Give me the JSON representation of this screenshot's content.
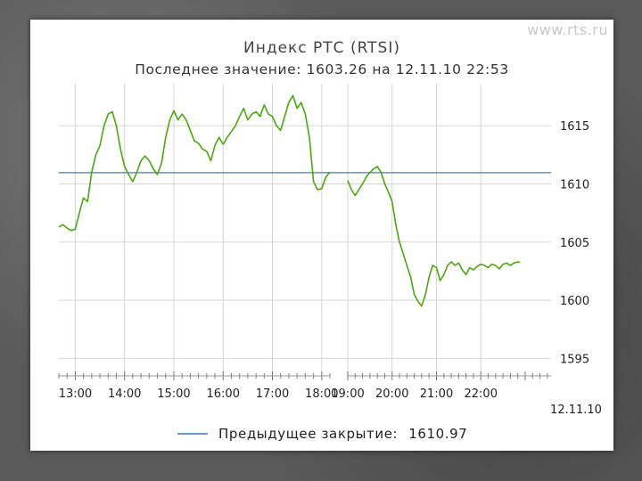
{
  "watermark": "www.rts.ru",
  "chart_data": {
    "type": "line",
    "title": "Индекс РТС (RTSI)",
    "subtitle": "Последнее значение: 1603.26 на 12.11.10 22:53",
    "x_ticks": [
      "13:00",
      "14:00",
      "15:00",
      "16:00",
      "17:00",
      "18:00",
      "19:00",
      "20:00",
      "21:00",
      "22:00"
    ],
    "date_label": "12.11.10",
    "y_ticks": [
      1595,
      1600,
      1605,
      1610,
      1615
    ],
    "ylim": [
      1593.5,
      1618
    ],
    "xlim": [
      "12:40",
      "23:35"
    ],
    "grid": true,
    "reference_line": {
      "label": "Предыдущее закрытие:",
      "value": 1610.97,
      "color": "#6b9bd2"
    },
    "series": [
      {
        "color": "#4aa80f",
        "segments": [
          [
            [
              "12:40",
              1606.3
            ],
            [
              "12:45",
              1606.5
            ],
            [
              "12:50",
              1606.2
            ],
            [
              "12:55",
              1606.0
            ],
            [
              "13:00",
              1606.1
            ],
            [
              "13:05",
              1607.5
            ],
            [
              "13:10",
              1608.8
            ],
            [
              "13:15",
              1608.5
            ],
            [
              "13:20",
              1611.0
            ],
            [
              "13:25",
              1612.5
            ],
            [
              "13:30",
              1613.3
            ],
            [
              "13:35",
              1615.0
            ],
            [
              "13:40",
              1616.0
            ],
            [
              "13:45",
              1616.2
            ],
            [
              "13:50",
              1615.0
            ],
            [
              "13:55",
              1613.0
            ],
            [
              "14:00",
              1611.5
            ],
            [
              "14:05",
              1610.8
            ],
            [
              "14:10",
              1610.2
            ],
            [
              "14:15",
              1611.0
            ],
            [
              "14:20",
              1612.0
            ],
            [
              "14:25",
              1612.4
            ],
            [
              "14:30",
              1612.0
            ],
            [
              "14:35",
              1611.3
            ],
            [
              "14:40",
              1610.8
            ],
            [
              "14:45",
              1611.8
            ],
            [
              "14:50",
              1614.0
            ],
            [
              "14:55",
              1615.5
            ],
            [
              "15:00",
              1616.3
            ],
            [
              "15:05",
              1615.5
            ],
            [
              "15:10",
              1616.0
            ],
            [
              "15:15",
              1615.5
            ],
            [
              "15:20",
              1614.6
            ],
            [
              "15:25",
              1613.7
            ],
            [
              "15:30",
              1613.5
            ],
            [
              "15:35",
              1613.0
            ],
            [
              "15:40",
              1612.8
            ],
            [
              "15:45",
              1612.0
            ],
            [
              "15:50",
              1613.3
            ],
            [
              "15:55",
              1614.0
            ],
            [
              "16:00",
              1613.4
            ],
            [
              "16:05",
              1614.0
            ],
            [
              "16:10",
              1614.5
            ],
            [
              "16:15",
              1615.0
            ],
            [
              "16:20",
              1615.8
            ],
            [
              "16:25",
              1616.5
            ],
            [
              "16:30",
              1615.5
            ],
            [
              "16:35",
              1616.0
            ],
            [
              "16:40",
              1616.2
            ],
            [
              "16:45",
              1615.8
            ],
            [
              "16:50",
              1616.8
            ],
            [
              "16:55",
              1616.0
            ],
            [
              "17:00",
              1615.8
            ],
            [
              "17:05",
              1615.0
            ],
            [
              "17:10",
              1614.6
            ],
            [
              "17:15",
              1615.8
            ],
            [
              "17:20",
              1617.0
            ],
            [
              "17:25",
              1617.6
            ],
            [
              "17:30",
              1616.5
            ],
            [
              "17:35",
              1617.0
            ],
            [
              "17:40",
              1616.0
            ],
            [
              "17:45",
              1614.0
            ],
            [
              "17:50",
              1610.2
            ],
            [
              "17:55",
              1609.5
            ],
            [
              "18:00",
              1609.6
            ],
            [
              "18:05",
              1610.6
            ],
            [
              "18:10",
              1611.0
            ]
          ],
          [
            [
              "19:00",
              1610.3
            ],
            [
              "19:05",
              1609.5
            ],
            [
              "19:10",
              1609.0
            ],
            [
              "19:15",
              1609.5
            ],
            [
              "19:20",
              1610.0
            ],
            [
              "19:25",
              1610.6
            ],
            [
              "19:30",
              1611.0
            ],
            [
              "19:35",
              1611.3
            ],
            [
              "19:40",
              1611.5
            ],
            [
              "19:45",
              1611.0
            ],
            [
              "19:50",
              1610.0
            ],
            [
              "19:55",
              1609.3
            ],
            [
              "20:00",
              1608.5
            ],
            [
              "20:05",
              1606.5
            ],
            [
              "20:10",
              1605.0
            ],
            [
              "20:15",
              1604.0
            ],
            [
              "20:20",
              1603.0
            ],
            [
              "20:25",
              1602.0
            ],
            [
              "20:30",
              1600.5
            ],
            [
              "20:35",
              1599.9
            ],
            [
              "20:40",
              1599.5
            ],
            [
              "20:45",
              1600.5
            ],
            [
              "20:50",
              1602.0
            ],
            [
              "20:55",
              1603.0
            ],
            [
              "21:00",
              1602.8
            ],
            [
              "21:05",
              1601.7
            ],
            [
              "21:10",
              1602.2
            ],
            [
              "21:15",
              1603.0
            ],
            [
              "21:20",
              1603.3
            ],
            [
              "21:25",
              1603.0
            ],
            [
              "21:30",
              1603.2
            ],
            [
              "21:35",
              1602.6
            ],
            [
              "21:40",
              1602.2
            ],
            [
              "21:45",
              1602.8
            ],
            [
              "21:50",
              1602.6
            ],
            [
              "21:55",
              1602.9
            ],
            [
              "22:00",
              1603.1
            ],
            [
              "22:05",
              1603.0
            ],
            [
              "22:10",
              1602.8
            ],
            [
              "22:15",
              1603.1
            ],
            [
              "22:20",
              1603.0
            ],
            [
              "22:25",
              1602.7
            ],
            [
              "22:30",
              1603.1
            ],
            [
              "22:35",
              1603.2
            ],
            [
              "22:40",
              1603.0
            ],
            [
              "22:45",
              1603.2
            ],
            [
              "22:50",
              1603.3
            ],
            [
              "22:53",
              1603.26
            ]
          ]
        ]
      }
    ]
  }
}
